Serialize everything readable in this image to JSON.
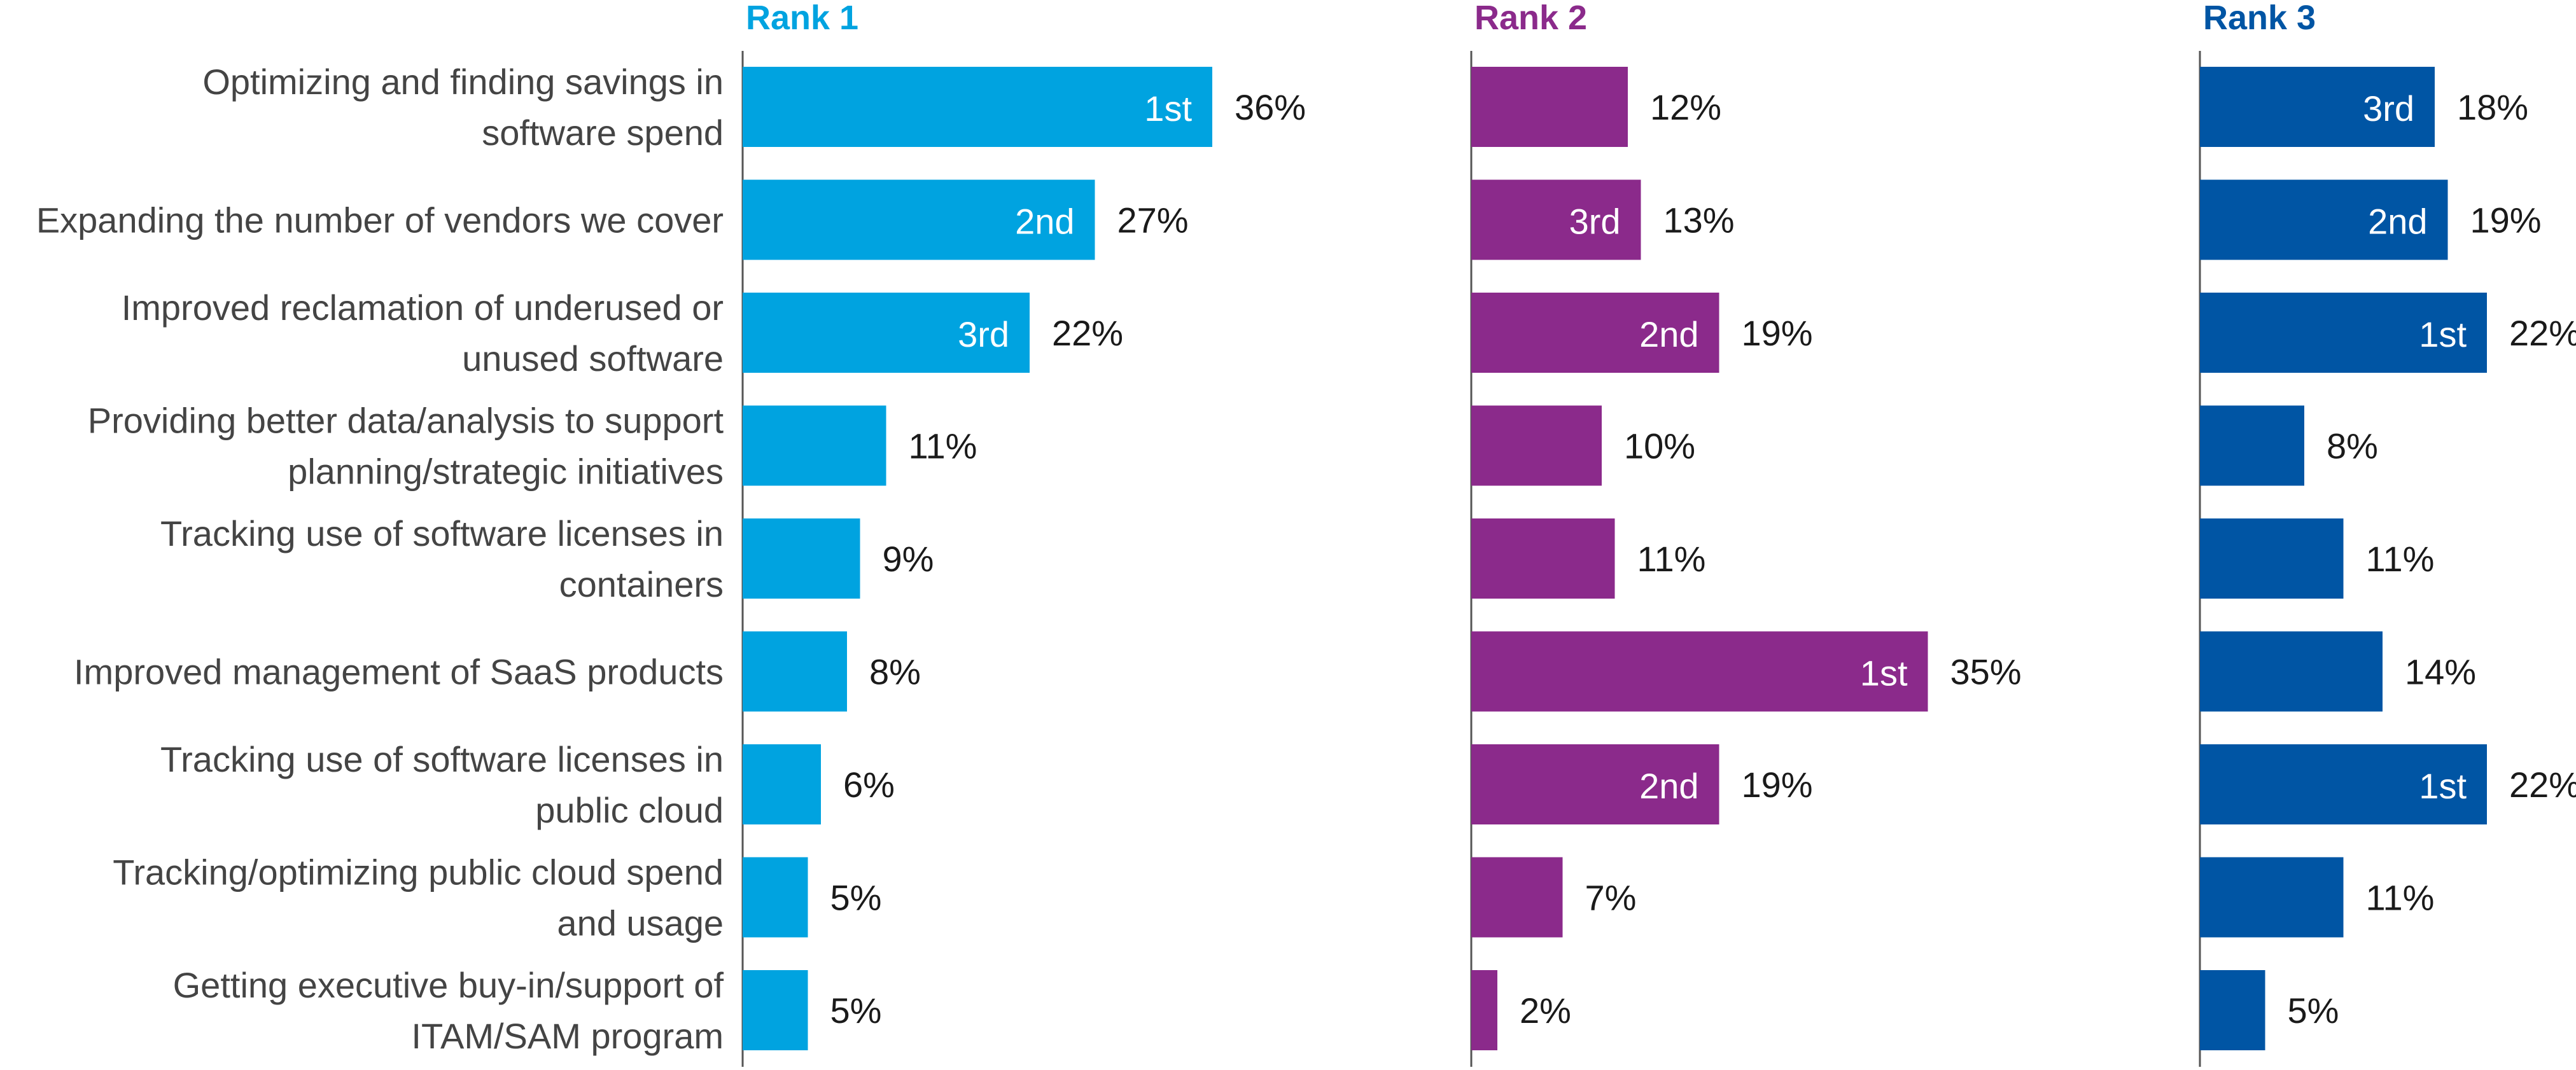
{
  "chart_data": {
    "type": "bar",
    "orientation": "horizontal",
    "categories": [
      [
        "Optimizing and finding savings in",
        "software spend"
      ],
      [
        "Expanding the number of vendors we cover"
      ],
      [
        "Improved reclamation of underused or",
        "unused software"
      ],
      [
        "Providing better data/analysis to support",
        "planning/strategic initiatives"
      ],
      [
        "Tracking use of software licenses in",
        "containers"
      ],
      [
        "Improved management of SaaS products"
      ],
      [
        "Tracking use of software licenses in",
        "public cloud"
      ],
      [
        "Tracking/optimizing public cloud spend",
        "and usage"
      ],
      [
        "Getting executive buy-in/support of",
        "ITAM/SAM program"
      ]
    ],
    "value_suffix": "%",
    "xlim": [
      0,
      36
    ],
    "grid": false,
    "legend": "none",
    "series": [
      {
        "name": "Rank 1",
        "color": "#00a3e0",
        "values": [
          36,
          27,
          22,
          11,
          9,
          8,
          6,
          5,
          5
        ],
        "ranks": [
          "1st",
          "2nd",
          "3rd",
          "",
          "",
          "",
          "",
          "",
          ""
        ]
      },
      {
        "name": "Rank 2",
        "color": "#8b2a8b",
        "values": [
          12,
          13,
          19,
          10,
          11,
          35,
          19,
          7,
          2
        ],
        "ranks": [
          "",
          "3rd",
          "2nd",
          "",
          "",
          "1st",
          "2nd",
          "",
          ""
        ]
      },
      {
        "name": "Rank 3",
        "color": "#0055a4",
        "values": [
          18,
          19,
          22,
          8,
          11,
          14,
          22,
          11,
          5
        ],
        "ranks": [
          "3rd",
          "2nd",
          "1st",
          "",
          "",
          "",
          "1st",
          "",
          ""
        ]
      }
    ]
  }
}
